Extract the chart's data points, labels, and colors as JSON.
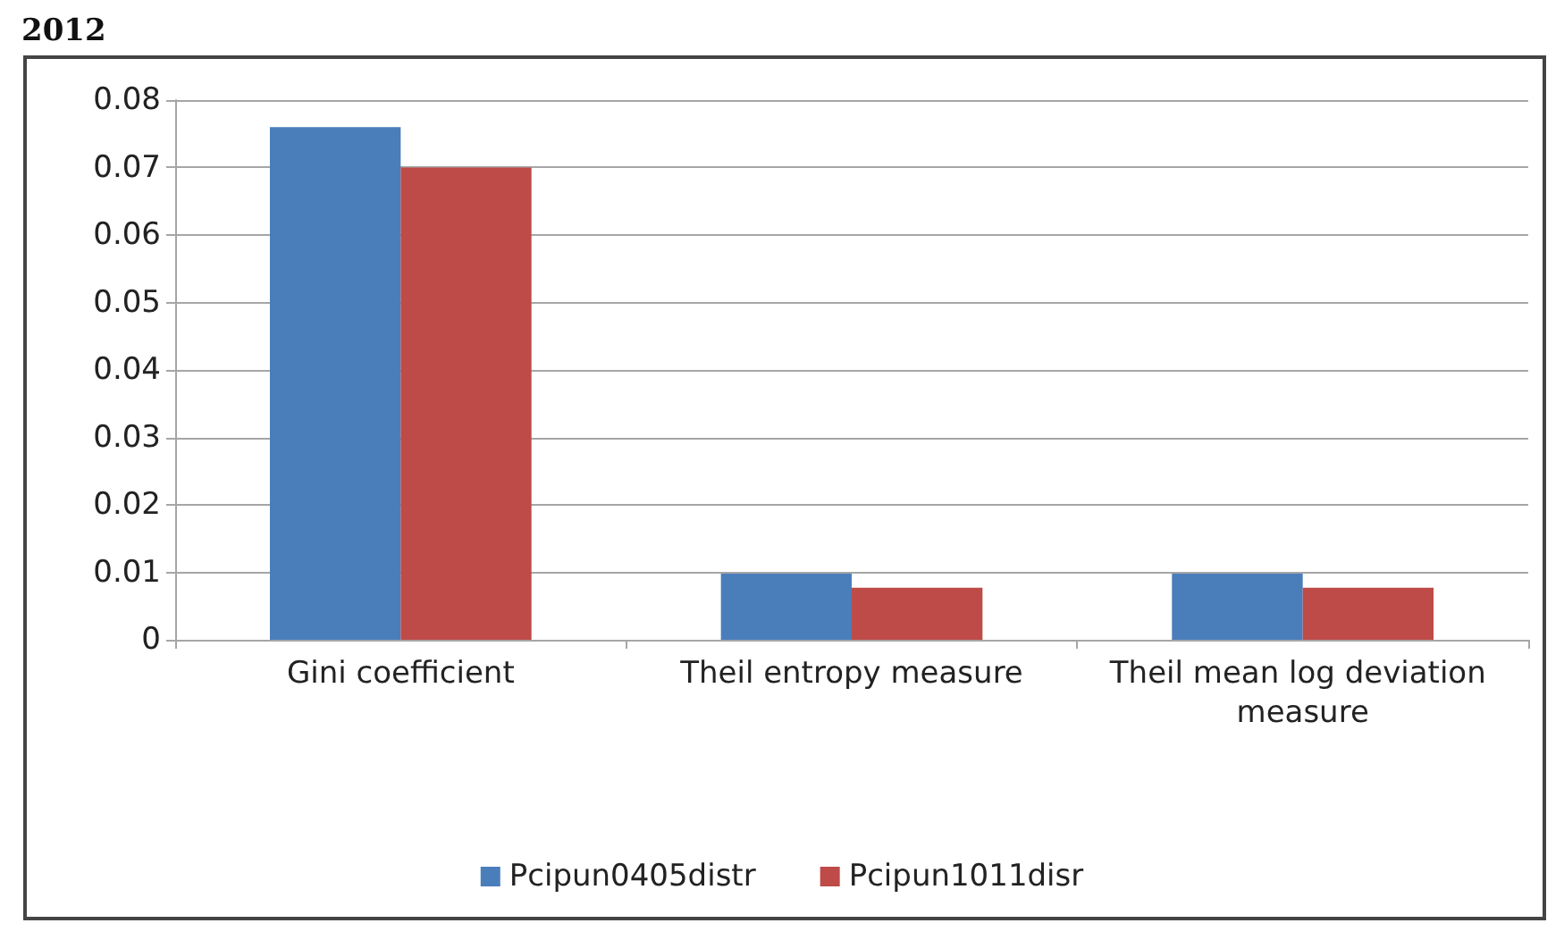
{
  "chart_data": {
    "type": "bar",
    "annotations": [
      "2012"
    ],
    "categories": [
      "Gini coefficient",
      "Theil entropy measure",
      "Theil mean log deviation measure"
    ],
    "series": [
      {
        "name": "Pcipun0405distr",
        "color": "#4a7ebb",
        "values": [
          0.076,
          0.0098,
          0.0098
        ]
      },
      {
        "name": "Pcipun1011disr",
        "color": "#be4b48",
        "values": [
          0.07,
          0.0077,
          0.0077
        ]
      }
    ],
    "ylim": [
      0,
      0.08
    ],
    "yticks": [
      0,
      0.01,
      0.02,
      0.03,
      0.04,
      0.05,
      0.06,
      0.07,
      0.08
    ],
    "grid": "y",
    "legend": "bottom"
  }
}
